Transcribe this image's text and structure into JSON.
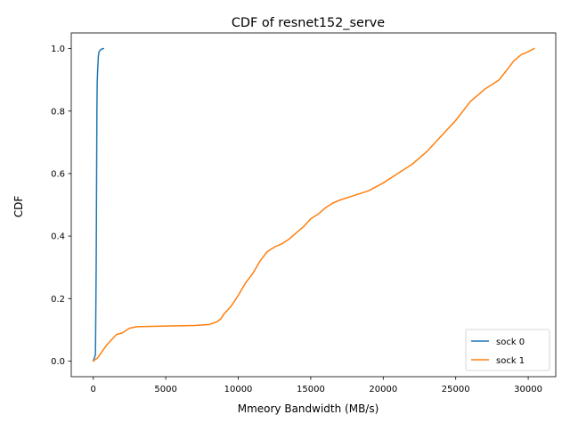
{
  "chart_data": {
    "type": "line",
    "title": "CDF of resnet152_serve",
    "xlabel": "Mmeory Bandwidth (MB/s)",
    "ylabel": "CDF",
    "xlim": [
      -1520,
      31900
    ],
    "ylim": [
      -0.05,
      1.05
    ],
    "x_ticks": [
      0,
      5000,
      10000,
      15000,
      20000,
      25000,
      30000
    ],
    "x_tick_labels": [
      "0",
      "5000",
      "10000",
      "15000",
      "20000",
      "25000",
      "30000"
    ],
    "y_ticks": [
      0.0,
      0.2,
      0.4,
      0.6,
      0.8,
      1.0
    ],
    "y_tick_labels": [
      "0.0",
      "0.2",
      "0.4",
      "0.6",
      "0.8",
      "1.0"
    ],
    "grid": false,
    "legend_position": "lower-right",
    "series": [
      {
        "name": "sock 0",
        "color": "#1f77b4",
        "x": [
          0,
          150,
          200,
          230,
          250,
          270,
          300,
          350,
          400,
          480,
          560,
          700
        ],
        "y": [
          0.0,
          0.02,
          0.3,
          0.6,
          0.8,
          0.89,
          0.93,
          0.975,
          0.99,
          0.995,
          0.998,
          1.0
        ]
      },
      {
        "name": "sock 1",
        "color": "#ff7f0e",
        "x": [
          0,
          300,
          600,
          900,
          1300,
          1600,
          2000,
          2500,
          3000,
          5000,
          7000,
          8000,
          8500,
          8800,
          9000,
          9500,
          10000,
          10500,
          11000,
          11500,
          12000,
          12500,
          13000,
          13500,
          14000,
          14500,
          15000,
          15500,
          16000,
          16500,
          17000,
          18000,
          19000,
          20000,
          21000,
          22000,
          23000,
          24000,
          25000,
          26000,
          27000,
          28000,
          29000,
          29500,
          30000,
          30400
        ],
        "y": [
          0.0,
          0.01,
          0.03,
          0.05,
          0.07,
          0.085,
          0.09,
          0.105,
          0.11,
          0.112,
          0.114,
          0.117,
          0.125,
          0.135,
          0.15,
          0.175,
          0.21,
          0.25,
          0.28,
          0.32,
          0.35,
          0.365,
          0.375,
          0.39,
          0.41,
          0.43,
          0.455,
          0.47,
          0.49,
          0.505,
          0.515,
          0.53,
          0.545,
          0.57,
          0.6,
          0.63,
          0.67,
          0.72,
          0.77,
          0.83,
          0.87,
          0.9,
          0.96,
          0.98,
          0.99,
          1.0
        ]
      }
    ]
  }
}
